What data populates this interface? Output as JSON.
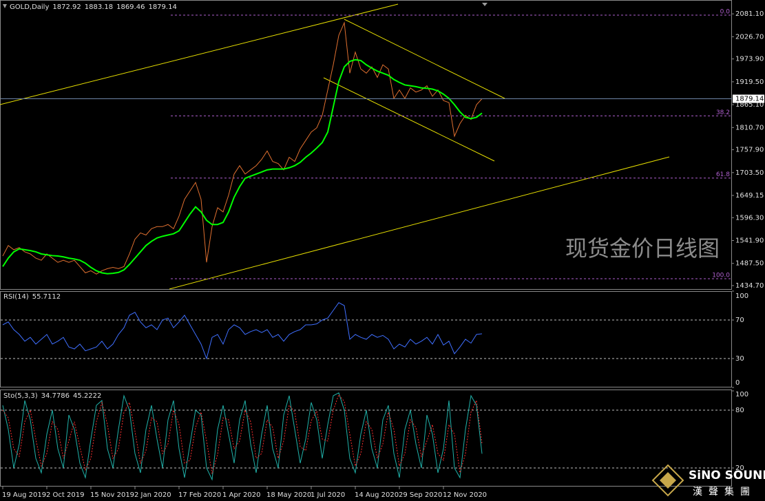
{
  "chart_data": [
    {
      "type": "line",
      "title": "GOLD,Daily",
      "ohlc": [
        1872.92,
        1883.18,
        1869.46,
        1879.14
      ],
      "categories": [
        "19 Aug 2019",
        null,
        null,
        null,
        null,
        null,
        null,
        null,
        "2 Oct 2019",
        null,
        null,
        null,
        null,
        null,
        null,
        null,
        "15 Nov 2019",
        null,
        null,
        null,
        null,
        null,
        null,
        null,
        "2 Jan 2020",
        null,
        null,
        null,
        null,
        null,
        null,
        null,
        "17 Feb 2020",
        null,
        null,
        null,
        null,
        null,
        null,
        null,
        "1 Apr 2020",
        null,
        null,
        null,
        null,
        null,
        null,
        null,
        "18 May 2020",
        null,
        null,
        null,
        null,
        null,
        null,
        null,
        "1 Jul 2020",
        null,
        null,
        null,
        null,
        null,
        null,
        null,
        "14 Aug 2020",
        null,
        null,
        null,
        null,
        null,
        null,
        null,
        "29 Sep 2020",
        null,
        null,
        null,
        null,
        null,
        null,
        null,
        "12 Nov 2020",
        null,
        null,
        null,
        null,
        null,
        null,
        null
      ],
      "series": [
        {
          "color": "#e07030",
          "values": [
            1505,
            1530,
            1520,
            1525,
            1515,
            1510,
            1500,
            1495,
            1510,
            1500,
            1490,
            1495,
            1490,
            1495,
            1480,
            1465,
            1470,
            1462,
            1470,
            1475,
            1478,
            1475,
            1480,
            1510,
            1545,
            1560,
            1555,
            1570,
            1575,
            1575,
            1580,
            1570,
            1600,
            1640,
            1660,
            1680,
            1640,
            1490,
            1575,
            1620,
            1610,
            1650,
            1700,
            1720,
            1700,
            1710,
            1720,
            1735,
            1755,
            1730,
            1725,
            1710,
            1740,
            1730,
            1760,
            1780,
            1800,
            1810,
            1840,
            1900,
            1960,
            2030,
            2060,
            1940,
            1990,
            1950,
            1940,
            1955,
            1930,
            1960,
            1950,
            1880,
            1900,
            1880,
            1905,
            1895,
            1900,
            1910,
            1885,
            1900,
            1875,
            1870,
            1790,
            1820,
            1840,
            1830,
            1865,
            1879.14
          ]
        },
        {
          "color": "#00ff00",
          "values": [
            1480,
            1500,
            1515,
            1522,
            1520,
            1518,
            1515,
            1510,
            1508,
            1506,
            1505,
            1503,
            1500,
            1498,
            1495,
            1488,
            1478,
            1470,
            1465,
            1463,
            1464,
            1466,
            1472,
            1485,
            1500,
            1515,
            1530,
            1540,
            1548,
            1552,
            1555,
            1558,
            1565,
            1585,
            1605,
            1622,
            1610,
            1590,
            1580,
            1580,
            1585,
            1610,
            1645,
            1670,
            1690,
            1695,
            1700,
            1705,
            1710,
            1712,
            1712,
            1712,
            1715,
            1720,
            1728,
            1740,
            1750,
            1762,
            1775,
            1800,
            1860,
            1920,
            1955,
            1968,
            1972,
            1970,
            1960,
            1952,
            1945,
            1940,
            1935,
            1925,
            1918,
            1912,
            1910,
            1908,
            1905,
            1904,
            1902,
            1898,
            1890,
            1880,
            1865,
            1848,
            1835,
            1832,
            1835,
            1845
          ]
        }
      ],
      "ylim": [
        1426.5,
        2110.8
      ],
      "yticks": [
        {
          "value": 2081.1,
          "label": "2081.10"
        },
        {
          "value": 2026.7,
          "label": "2026.70"
        },
        {
          "value": 1973.9,
          "label": "1973.90"
        },
        {
          "value": 1919.5,
          "label": "1919.50"
        },
        {
          "value": 1865.1,
          "label": "1865.10"
        },
        {
          "value": 1810.7,
          "label": "1810.70"
        },
        {
          "value": 1757.9,
          "label": "1757.90"
        },
        {
          "value": 1703.5,
          "label": "1703.50"
        },
        {
          "value": 1649.15,
          "label": "1649.15"
        },
        {
          "value": 1596.3,
          "label": "1596.30"
        },
        {
          "value": 1541.9,
          "label": "1541.90"
        },
        {
          "value": 1487.5,
          "label": "1487.50"
        },
        {
          "value": 1434.7,
          "label": "1434.70"
        }
      ],
      "fib_levels": [
        {
          "level": {
            "value": 0,
            "label": "0.0"
          },
          "price": 2078
        },
        {
          "level": 38.2,
          "price": 1838.5
        },
        {
          "level": 61.8,
          "price": 1690.5
        },
        {
          "level": {
            "value": 100,
            "label": "100.0"
          },
          "price": 1451
        }
      ],
      "fib_color": "#b060d0"
    },
    {
      "type": "line",
      "title": "RSI(14)",
      "series": [
        {
          "color": "#3f6fff",
          "values": [
            65,
            68,
            60,
            55,
            48,
            52,
            45,
            50,
            55,
            45,
            48,
            52,
            42,
            40,
            45,
            38,
            40,
            42,
            48,
            40,
            45,
            55,
            62,
            75,
            78,
            68,
            62,
            65,
            60,
            70,
            72,
            62,
            68,
            75,
            65,
            55,
            45,
            30,
            52,
            55,
            45,
            60,
            65,
            62,
            55,
            58,
            60,
            57,
            60,
            52,
            55,
            48,
            55,
            58,
            60,
            65,
            65,
            66,
            70,
            72,
            80,
            88,
            85,
            50,
            55,
            52,
            50,
            55,
            52,
            54,
            50,
            40,
            45,
            42,
            50,
            45,
            48,
            52,
            45,
            55,
            44,
            48,
            35,
            42,
            50,
            46,
            55,
            55.7112
          ]
        }
      ],
      "ylim": [
        0,
        100
      ],
      "yticks": [
        0,
        30,
        70,
        100
      ]
    },
    {
      "type": "line",
      "title": "Sto(5,3,3)",
      "series": [
        {
          "color": "#20b2aa",
          "values": [
            85,
            60,
            20,
            45,
            90,
            70,
            30,
            15,
            55,
            80,
            40,
            20,
            75,
            60,
            25,
            10,
            50,
            85,
            90,
            40,
            20,
            60,
            95,
            80,
            35,
            15,
            60,
            85,
            50,
            20,
            70,
            90,
            40,
            10,
            45,
            80,
            75,
            20,
            8,
            60,
            85,
            55,
            25,
            70,
            90,
            45,
            15,
            55,
            85,
            40,
            20,
            75,
            95,
            60,
            25,
            50,
            88,
            70,
            30,
            65,
            95,
            98,
            80,
            30,
            15,
            55,
            80,
            40,
            20,
            70,
            85,
            35,
            10,
            60,
            80,
            45,
            20,
            75,
            55,
            15,
            40,
            90,
            20,
            10,
            60,
            95,
            85,
            34.7786
          ]
        },
        {
          "color": "#ff3030",
          "dashed": true,
          "values": [
            80,
            72,
            40,
            32,
            68,
            80,
            50,
            22,
            35,
            68,
            60,
            30,
            48,
            68,
            42,
            18,
            30,
            68,
            88,
            65,
            30,
            40,
            78,
            88,
            58,
            25,
            38,
            72,
            68,
            35,
            45,
            80,
            65,
            25,
            28,
            62,
            78,
            48,
            14,
            34,
            72,
            70,
            40,
            48,
            80,
            68,
            30,
            35,
            70,
            62,
            30,
            48,
            85,
            78,
            42,
            38,
            69,
            79,
            50,
            48,
            80,
            96,
            89,
            55,
            22,
            35,
            68,
            60,
            30,
            45,
            78,
            60,
            22,
            35,
            70,
            62,
            32,
            48,
            65,
            35,
            28,
            65,
            55,
            15,
            35,
            78,
            90,
            45.2222
          ]
        }
      ],
      "ylim": [
        0,
        100
      ],
      "yticks": [
        20,
        80,
        100
      ]
    }
  ],
  "watermark": "现货金价日线图",
  "logo": {
    "name": "SiNO SOUND",
    "subtitle": "漢聲集團"
  }
}
